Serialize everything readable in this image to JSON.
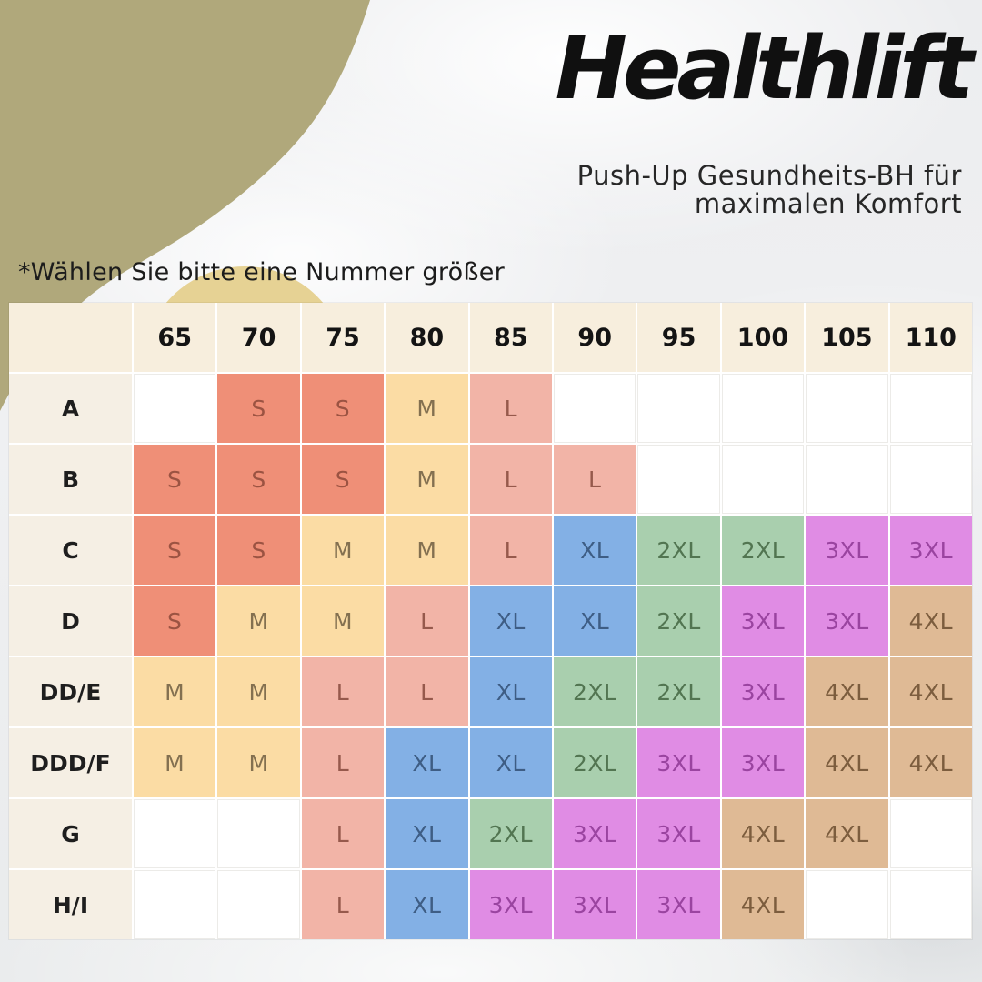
{
  "brand": {
    "name": "Healthlift",
    "subtitle_line1": "Push-Up Gesundheits-BH für",
    "subtitle_line2": "maximalen Komfort"
  },
  "note": "*Wählen Sie bitte eine Nummer größer",
  "colors": {
    "olive_blob": "#b0a87b",
    "yellow_circle": "#e6d294",
    "header_bg": "#f7eedd",
    "label_bg": "#f5efe4",
    "grid_line": "#ffffff",
    "title_text": "#101010",
    "background": "#eef0f1"
  },
  "chart_data": {
    "type": "table",
    "columns": [
      "65",
      "70",
      "75",
      "80",
      "85",
      "90",
      "95",
      "100",
      "105",
      "110"
    ],
    "rows": [
      {
        "label": "A",
        "cells": [
          "",
          "S",
          "S",
          "M",
          "L",
          "",
          "",
          "",
          "",
          ""
        ]
      },
      {
        "label": "B",
        "cells": [
          "S",
          "S",
          "S",
          "M",
          "L",
          "L",
          "",
          "",
          "",
          ""
        ]
      },
      {
        "label": "C",
        "cells": [
          "S",
          "S",
          "M",
          "M",
          "L",
          "XL",
          "2XL",
          "2XL",
          "3XL",
          "3XL"
        ]
      },
      {
        "label": "D",
        "cells": [
          "S",
          "M",
          "M",
          "L",
          "XL",
          "XL",
          "2XL",
          "3XL",
          "3XL",
          "4XL"
        ]
      },
      {
        "label": "DD/E",
        "cells": [
          "M",
          "M",
          "L",
          "L",
          "XL",
          "2XL",
          "2XL",
          "3XL",
          "4XL",
          "4XL"
        ]
      },
      {
        "label": "DDD/F",
        "cells": [
          "M",
          "M",
          "L",
          "XL",
          "XL",
          "2XL",
          "3XL",
          "3XL",
          "4XL",
          "4XL"
        ]
      },
      {
        "label": "G",
        "cells": [
          "",
          "",
          "L",
          "XL",
          "2XL",
          "3XL",
          "3XL",
          "4XL",
          "4XL",
          ""
        ]
      },
      {
        "label": "H/I",
        "cells": [
          "",
          "",
          "L",
          "XL",
          "3XL",
          "3XL",
          "3XL",
          "4XL",
          "",
          ""
        ]
      }
    ],
    "size_colors": {
      "S": {
        "bg": "#ef8f77",
        "text": "#9b5342"
      },
      "M": {
        "bg": "#fbdca4",
        "text": "#837050"
      },
      "L": {
        "bg": "#f2b4a7",
        "text": "#96594c"
      },
      "XL": {
        "bg": "#83b0e5",
        "text": "#3e5d84"
      },
      "2XL": {
        "bg": "#a9cfae",
        "text": "#527551"
      },
      "3XL": {
        "bg": "#e08ce4",
        "text": "#9a44a0"
      },
      "4XL": {
        "bg": "#dfba95",
        "text": "#7c5d3e"
      }
    }
  }
}
